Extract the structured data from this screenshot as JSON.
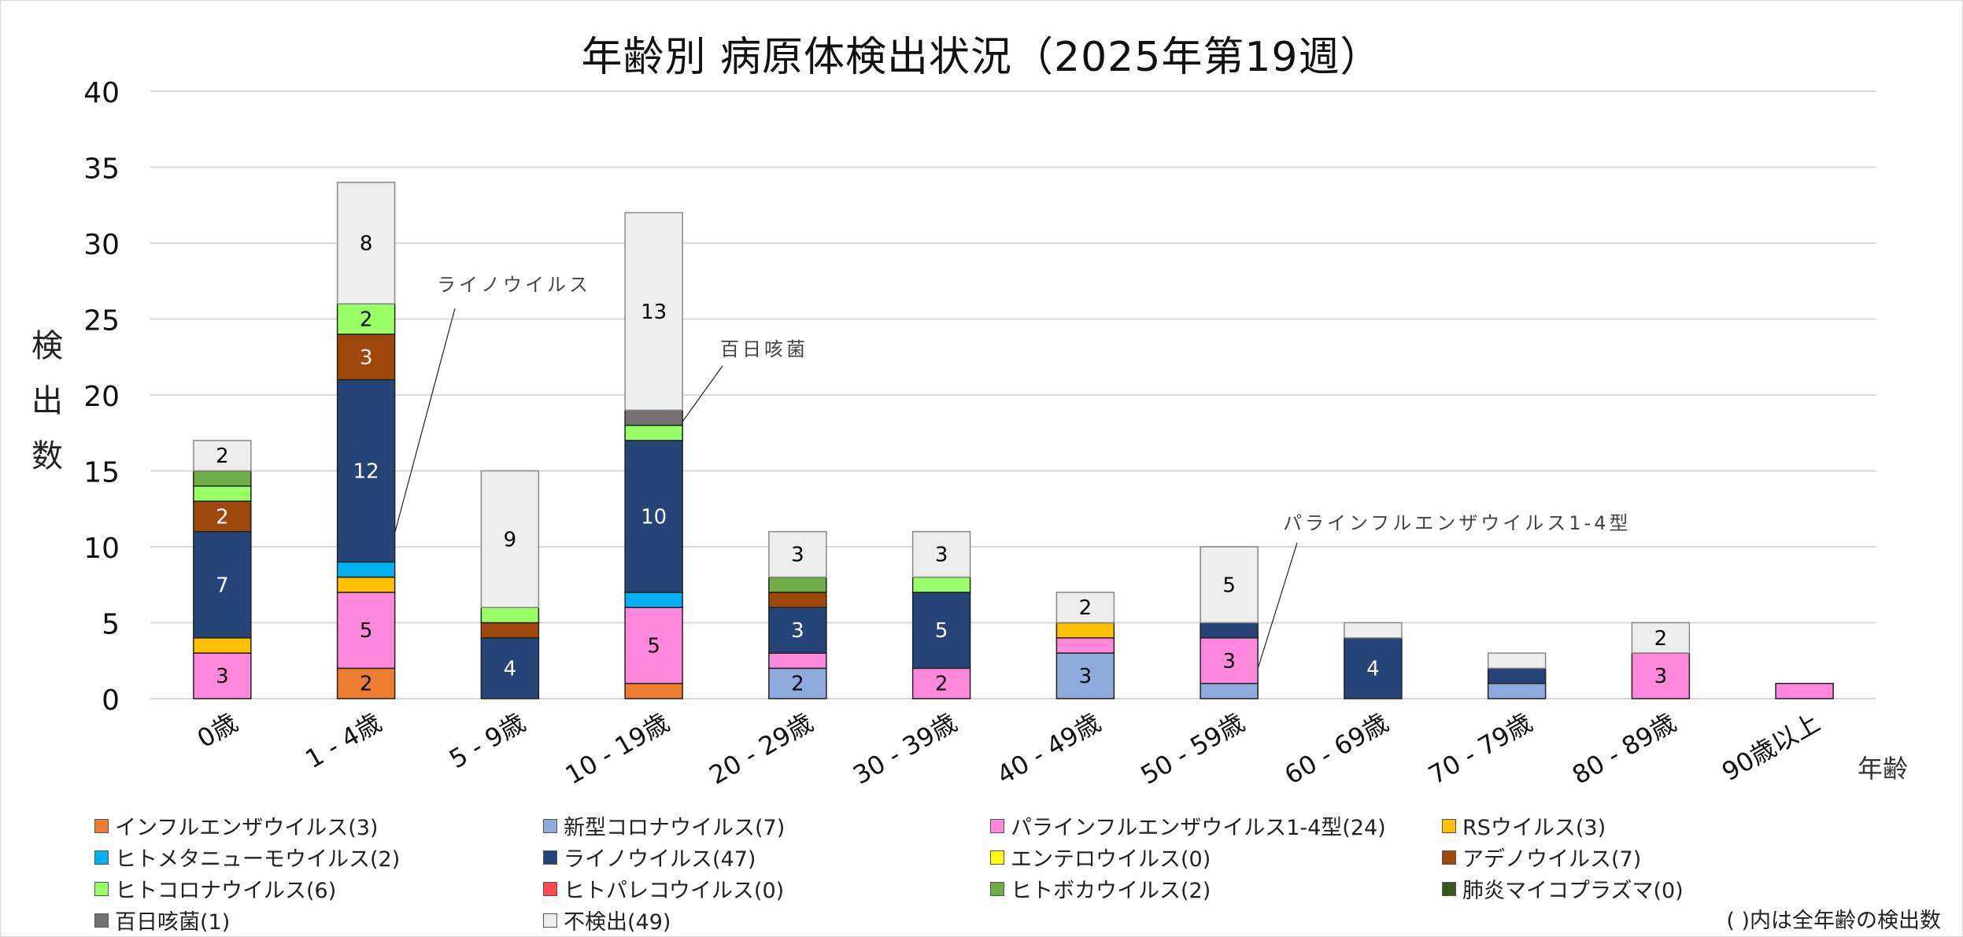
{
  "chart_data": {
    "type": "bar",
    "stacked": true,
    "title": "年齢別 病原体検出状況（2025年第19週）",
    "xlabel": "年齢",
    "ylabel": "検出数",
    "ylim": [
      0,
      40
    ],
    "yticks": [
      0,
      5,
      10,
      15,
      20,
      25,
      30,
      35,
      40
    ],
    "grid": true,
    "legend_position": "bottom",
    "categories": [
      "0歳",
      "1 - 4歳",
      "5 - 9歳",
      "10 - 19歳",
      "20 - 29歳",
      "30 - 39歳",
      "40 - 49歳",
      "50 - 59歳",
      "60 - 69歳",
      "70 - 79歳",
      "80 - 89歳",
      "90歳以上"
    ],
    "series": [
      {
        "name": "インフルエンザウイルス",
        "total": 3,
        "color": "#ED7D31",
        "label_color": "#000000",
        "values": [
          0,
          2,
          0,
          1,
          0,
          0,
          0,
          0,
          0,
          0,
          0,
          0
        ]
      },
      {
        "name": "新型コロナウイルス",
        "total": 7,
        "color": "#8FAADC",
        "label_color": "#000000",
        "values": [
          0,
          0,
          0,
          0,
          2,
          0,
          3,
          1,
          0,
          1,
          0,
          0
        ]
      },
      {
        "name": "パラインフルエンザウイルス1-4型",
        "total": 24,
        "color": "#FF88DD",
        "label_color": "#000000",
        "values": [
          3,
          5,
          0,
          5,
          1,
          2,
          1,
          3,
          0,
          0,
          3,
          1
        ]
      },
      {
        "name": "RSウイルス",
        "total": 3,
        "color": "#FFC000",
        "label_color": "#000000",
        "values": [
          1,
          1,
          0,
          0,
          0,
          0,
          1,
          0,
          0,
          0,
          0,
          0
        ]
      },
      {
        "name": "ヒトメタニューモウイルス",
        "total": 2,
        "color": "#00B0F0",
        "label_color": "#000000",
        "values": [
          0,
          1,
          0,
          1,
          0,
          0,
          0,
          0,
          0,
          0,
          0,
          0
        ]
      },
      {
        "name": "ライノウイルス",
        "total": 47,
        "color": "#264478",
        "label_color": "#FFFFFF",
        "values": [
          7,
          12,
          4,
          10,
          3,
          5,
          0,
          1,
          4,
          1,
          0,
          0
        ]
      },
      {
        "name": "エンテロウイルス",
        "total": 0,
        "color": "#FFFF00",
        "label_color": "#000000",
        "values": [
          0,
          0,
          0,
          0,
          0,
          0,
          0,
          0,
          0,
          0,
          0,
          0
        ]
      },
      {
        "name": "アデノウイルス",
        "total": 7,
        "color": "#9E480E",
        "label_color": "#FFFFFF",
        "values": [
          2,
          3,
          1,
          0,
          1,
          0,
          0,
          0,
          0,
          0,
          0,
          0
        ]
      },
      {
        "name": "ヒトコロナウイルス",
        "total": 6,
        "color": "#99FF66",
        "label_color": "#000000",
        "values": [
          1,
          2,
          1,
          1,
          0,
          1,
          0,
          0,
          0,
          0,
          0,
          0
        ]
      },
      {
        "name": "ヒトパレコウイルス",
        "total": 0,
        "color": "#FF4B4B",
        "label_color": "#000000",
        "values": [
          0,
          0,
          0,
          0,
          0,
          0,
          0,
          0,
          0,
          0,
          0,
          0
        ]
      },
      {
        "name": "ヒトボカウイルス",
        "total": 2,
        "color": "#70AD47",
        "label_color": "#000000",
        "values": [
          1,
          0,
          0,
          0,
          1,
          0,
          0,
          0,
          0,
          0,
          0,
          0
        ]
      },
      {
        "name": "肺炎マイコプラズマ",
        "total": 0,
        "color": "#375623",
        "label_color": "#FFFFFF",
        "values": [
          0,
          0,
          0,
          0,
          0,
          0,
          0,
          0,
          0,
          0,
          0,
          0
        ]
      },
      {
        "name": "百日咳菌",
        "total": 1,
        "color": "#767171",
        "label_color": "#FFFFFF",
        "values": [
          0,
          0,
          0,
          1,
          0,
          0,
          0,
          0,
          0,
          0,
          0,
          0
        ]
      },
      {
        "name": "不検出",
        "total": 49,
        "color": "#EDEDED",
        "label_color": "#000000",
        "values": [
          2,
          8,
          9,
          13,
          3,
          3,
          2,
          5,
          1,
          1,
          2,
          0
        ]
      }
    ],
    "data_label_min": 2,
    "annotations": [
      {
        "text": "ライノウイルス",
        "category": "1 - 4歳",
        "series": "ライノウイルス"
      },
      {
        "text": "百日咳菌",
        "category": "10 - 19歳",
        "series": "百日咳菌"
      },
      {
        "text": "パラインフルエンザウイルス1-4型",
        "category": "50 - 59歳",
        "series": "パラインフルエンザウイルス1-4型"
      }
    ],
    "legend_note": "( )内は全年齢の検出数"
  },
  "y_axis_label_chars": [
    "検",
    "出",
    "数"
  ]
}
